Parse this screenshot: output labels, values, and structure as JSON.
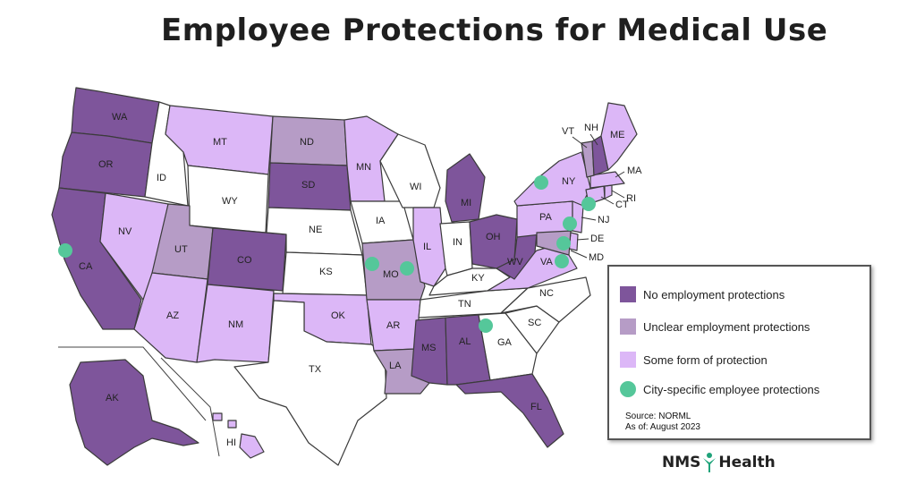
{
  "title": "Employee Protections for Medical Use",
  "colors": {
    "none": "#7e559b",
    "unclear": "#b69cc6",
    "some": "#dcb7f7",
    "unlegal": "#ffffff",
    "city": "#55c79a",
    "border": "#3b3b3b"
  },
  "legend": {
    "items": [
      {
        "label": "No employment protections",
        "color": "#7e559b",
        "shape": "square"
      },
      {
        "label": "Unclear employment protections",
        "color": "#b69cc6",
        "shape": "square"
      },
      {
        "label": "Some form of protection",
        "color": "#dcb7f7",
        "shape": "square"
      },
      {
        "label": "City-specific employee protections",
        "color": "#55c79a",
        "shape": "circle"
      }
    ],
    "source": "Source: NORML",
    "as_of": "As of: August 2023"
  },
  "brand": {
    "left": "NMS",
    "right": "Health"
  },
  "states": [
    {
      "abbr": "WA",
      "status": "none"
    },
    {
      "abbr": "OR",
      "status": "none"
    },
    {
      "abbr": "CA",
      "status": "none"
    },
    {
      "abbr": "NV",
      "status": "some"
    },
    {
      "abbr": "ID",
      "status": "unlegal"
    },
    {
      "abbr": "MT",
      "status": "some"
    },
    {
      "abbr": "WY",
      "status": "unlegal"
    },
    {
      "abbr": "UT",
      "status": "unclear"
    },
    {
      "abbr": "AZ",
      "status": "some"
    },
    {
      "abbr": "CO",
      "status": "none"
    },
    {
      "abbr": "NM",
      "status": "some"
    },
    {
      "abbr": "ND",
      "status": "unclear"
    },
    {
      "abbr": "SD",
      "status": "none"
    },
    {
      "abbr": "NE",
      "status": "unlegal"
    },
    {
      "abbr": "KS",
      "status": "unlegal"
    },
    {
      "abbr": "OK",
      "status": "some"
    },
    {
      "abbr": "TX",
      "status": "unlegal"
    },
    {
      "abbr": "MN",
      "status": "some"
    },
    {
      "abbr": "IA",
      "status": "unlegal"
    },
    {
      "abbr": "MO",
      "status": "unclear"
    },
    {
      "abbr": "AR",
      "status": "some"
    },
    {
      "abbr": "LA",
      "status": "unclear"
    },
    {
      "abbr": "WI",
      "status": "unlegal"
    },
    {
      "abbr": "IL",
      "status": "some"
    },
    {
      "abbr": "MI",
      "status": "none"
    },
    {
      "abbr": "IN",
      "status": "unlegal"
    },
    {
      "abbr": "OH",
      "status": "none"
    },
    {
      "abbr": "KY",
      "status": "unlegal"
    },
    {
      "abbr": "TN",
      "status": "unlegal"
    },
    {
      "abbr": "MS",
      "status": "none"
    },
    {
      "abbr": "AL",
      "status": "none"
    },
    {
      "abbr": "GA",
      "status": "unlegal"
    },
    {
      "abbr": "FL",
      "status": "none"
    },
    {
      "abbr": "SC",
      "status": "unlegal"
    },
    {
      "abbr": "NC",
      "status": "unlegal"
    },
    {
      "abbr": "VA",
      "status": "some"
    },
    {
      "abbr": "WV",
      "status": "none"
    },
    {
      "abbr": "PA",
      "status": "some"
    },
    {
      "abbr": "NY",
      "status": "some"
    },
    {
      "abbr": "NJ",
      "status": "some"
    },
    {
      "abbr": "DE",
      "status": "some"
    },
    {
      "abbr": "MD",
      "status": "unclear"
    },
    {
      "abbr": "CT",
      "status": "some"
    },
    {
      "abbr": "RI",
      "status": "some"
    },
    {
      "abbr": "MA",
      "status": "some"
    },
    {
      "abbr": "VT",
      "status": "unclear"
    },
    {
      "abbr": "NH",
      "status": "none"
    },
    {
      "abbr": "ME",
      "status": "some"
    },
    {
      "abbr": "AK",
      "status": "none"
    },
    {
      "abbr": "HI",
      "status": "some"
    }
  ]
}
